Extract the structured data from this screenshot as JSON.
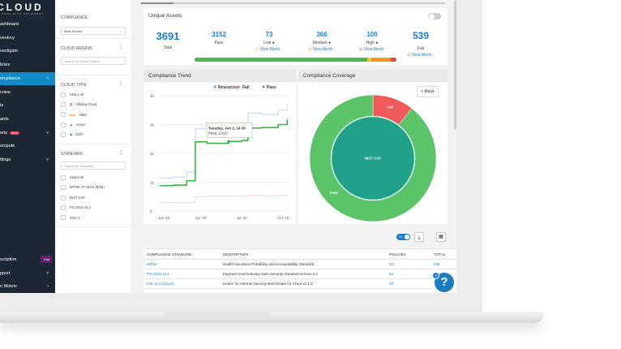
{
  "brand": {
    "logo": "CLOUD",
    "sub": "PALO ALTO NETWORKS"
  },
  "sidebar": {
    "items": [
      {
        "label": "ashboard"
      },
      {
        "label": "ventory"
      },
      {
        "label": "vestigate"
      },
      {
        "label": "licies"
      },
      {
        "label": "ompliance"
      },
      {
        "label": "rview"
      },
      {
        "label": "ts"
      },
      {
        "label": "ards"
      },
      {
        "label": "erts",
        "badge": "5684"
      },
      {
        "label": "ompute"
      },
      {
        "label": "ttings"
      }
    ],
    "bottom": [
      {
        "label": "scription",
        "badge": "Trial"
      },
      {
        "label": "pport"
      },
      {
        "label": "n Mokris"
      }
    ]
  },
  "filters": {
    "compliance": {
      "title": "COMPLIANCE",
      "value": "Most Recent"
    },
    "cloud_region": {
      "title": "CLOUD REGION",
      "placeholder": "Search for Cloud Region"
    },
    "cloud_type": {
      "title": "CLOUD TYPE",
      "options": [
        "Select All",
        "Alibaba Cloud",
        "AWS",
        "Azure",
        "GCP"
      ]
    },
    "standard": {
      "title": "STANDARD",
      "placeholder": "Search for Standard",
      "options": [
        "Select All",
        "MITRE ATT&CK (Beta)",
        "NIST CSF",
        "PCI DSS v3.2",
        "SOC 2"
      ]
    }
  },
  "assets": {
    "title": "Unique Assets",
    "total": "3691",
    "total_label": "Total",
    "pass": "3152",
    "pass_label": "Pass",
    "low": "73",
    "low_label": "Low",
    "medium": "366",
    "medium_label": "Medium",
    "high": "100",
    "high_label": "High",
    "fail": "539",
    "fail_label": "Fail",
    "view_alerts": "View Alerts",
    "bar": {
      "pass_pct": 85.4,
      "low_pct": 2.0,
      "medium_pct": 9.9,
      "high_pct": 2.7
    },
    "colors": {
      "pass": "#4cbb4f",
      "low": "#f6c32b",
      "medium": "#f5931e",
      "high": "#e8434a"
    }
  },
  "chart_data": [
    {
      "type": "line",
      "title": "Compliance Trend",
      "x": [
        "2020-01-01",
        "2020-02-01",
        "2020-03-01",
        "2020-03-20",
        "2020-04-15",
        "2020-06-02",
        "2020-07-01",
        "2020-07-15",
        "2020-08-15",
        "2020-09-20",
        "2020-10-10"
      ],
      "xticks": [
        "Jan '20",
        "Apr '20",
        "Jul '20",
        "Oct '20"
      ],
      "yticks": [
        "0",
        "1k",
        "2k",
        "3k",
        "4k"
      ],
      "ylim": [
        0,
        4000
      ],
      "legend": "top-right",
      "series": [
        {
          "name": "Resources",
          "color": "#5b9bf0",
          "values": [
            1150,
            1180,
            1350,
            2850,
            2880,
            2900,
            3000,
            3400,
            3350,
            3500,
            3700
          ]
        },
        {
          "name": "Fail",
          "color": "#f49393",
          "values": [
            290,
            300,
            300,
            500,
            520,
            520,
            530,
            550,
            520,
            550,
            560
          ]
        },
        {
          "name": "Pass",
          "color": "#3cb24a",
          "values": [
            880,
            900,
            1050,
            2400,
            2350,
            2415,
            2450,
            2880,
            2900,
            3000,
            3180
          ]
        }
      ],
      "tooltip": {
        "title": "Tuesday, Jun 2, 14:30",
        "text": "Pass: 2,415"
      }
    },
    {
      "type": "pie",
      "title": "Compliance Coverage",
      "center": "NIST CSF",
      "slices": [
        {
          "name": "Fail",
          "value": 10.5,
          "color": "#f15a5a"
        },
        {
          "name": "Pass",
          "value": 89.5,
          "color": "#5cc468"
        }
      ],
      "center_color": "#21a08a",
      "back": "< Back"
    }
  ],
  "table": {
    "headers": [
      "COMPLIANCE STANDARD",
      "DESCRIPTION",
      "POLICIES",
      "TOTAL"
    ],
    "rows": [
      [
        "HIPAA",
        "Health Insurance Portability and Accountability Standard",
        "82",
        "248"
      ],
      [
        "PCI DSS v3.2",
        "Payment Card Industry Data Security Standard version 3.2",
        "93",
        ""
      ],
      [
        "CIS v1.1 (Azure)",
        "Center for Internet Security Benchmark for Azure v1.1.0",
        "78",
        ""
      ]
    ],
    "toggle": "%"
  },
  "help": {
    "label": "?",
    "count": "9"
  }
}
